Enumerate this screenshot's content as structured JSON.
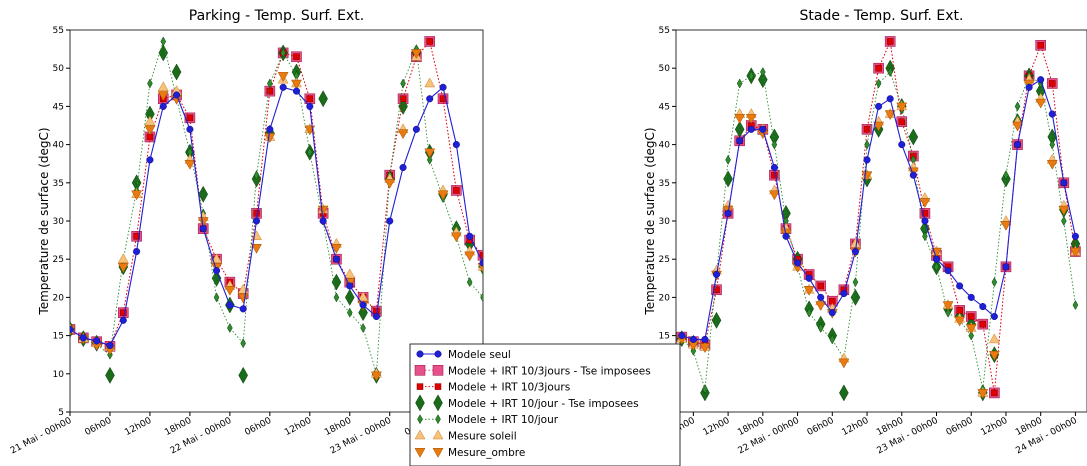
{
  "chart_data": [
    {
      "type": "line",
      "title": "Parking - Temp. Surf. Ext.",
      "y_label": "Temperature de surface (degC)",
      "x": [
        0,
        2,
        4,
        6,
        8,
        10,
        12,
        14,
        16,
        18,
        20,
        22,
        24,
        26,
        28,
        30,
        32,
        34,
        36,
        38,
        40,
        42,
        44,
        46,
        48,
        50,
        52,
        54,
        56,
        58,
        60,
        62
      ],
      "xlim": [
        0,
        62
      ],
      "xticks": [
        {
          "value": 0,
          "label": "21 Mai - 00h00"
        },
        {
          "value": 6,
          "label": "06h00"
        },
        {
          "value": 12,
          "label": "12h00"
        },
        {
          "value": 18,
          "label": "18h00"
        },
        {
          "value": 24,
          "label": "22 Mai - 00h00"
        },
        {
          "value": 30,
          "label": "06h00"
        },
        {
          "value": 36,
          "label": "12h00"
        },
        {
          "value": 42,
          "label": "18h00"
        },
        {
          "value": 48,
          "label": "23 Mai - 00h00"
        },
        {
          "value": 54,
          "label": "06h00"
        },
        {
          "value": 60,
          "label": "12h00"
        }
      ],
      "ylim": [
        5,
        55
      ],
      "yticks": [
        5,
        10,
        15,
        20,
        25,
        30,
        35,
        40,
        45,
        50,
        55
      ],
      "series": [
        {
          "name": "Modele seul",
          "color": "#1f1fd6",
          "line": "solid",
          "marker": "circle",
          "values": [
            15.8,
            14.7,
            14.3,
            13.7,
            17,
            26,
            38,
            45,
            46.5,
            42,
            29,
            23.5,
            19,
            18.5,
            30,
            42,
            47.5,
            47,
            45,
            30,
            25,
            21.5,
            19,
            17.5,
            30,
            37,
            42,
            46,
            47.5,
            40,
            28,
            24.5
          ]
        },
        {
          "name": "Modele + IRT 10/3jours - Tse imposees",
          "color": "#e8508a",
          "line": "dotted",
          "marker": "big-square",
          "values": [
            15.8,
            14.7,
            14.2,
            13.6,
            18,
            28,
            41,
            46,
            46.5,
            43.5,
            29,
            25,
            22,
            20.5,
            31,
            47,
            52,
            51.5,
            46,
            31,
            25,
            22,
            20,
            18.2,
            36,
            46,
            51.5,
            53.5,
            46,
            34,
            27.5,
            25.5
          ]
        },
        {
          "name": "Modele + IRT 10/3jours",
          "color": "#e00000",
          "line": "dotted",
          "marker": "square",
          "values": [
            15.8,
            14.7,
            14.2,
            13.6,
            18,
            28,
            41,
            46,
            46.5,
            43.5,
            29,
            25,
            22,
            20.5,
            31,
            47,
            52,
            51.5,
            46,
            31,
            25,
            22,
            20,
            18.2,
            36,
            46,
            51.5,
            53.5,
            46,
            34,
            27.5,
            25.5
          ]
        },
        {
          "name": "Modele + IRT 10/jour - Tse imposees",
          "color": "#1a6b1a",
          "line": "none",
          "marker": "big-diamond",
          "values": [
            15.8,
            14.6,
            14,
            9.8,
            24,
            35,
            44,
            52,
            49.5,
            39,
            33.5,
            22.5,
            19,
            9.8,
            35.5,
            41.5,
            52,
            49.5,
            39,
            46,
            22,
            20,
            18,
            9.8,
            35.5,
            45,
            52,
            39,
            33.5,
            29,
            27,
            24
          ]
        },
        {
          "name": "Modele + IRT 10/jour",
          "color": "#2e8b2e",
          "line": "dotted",
          "marker": "diamond",
          "values": [
            15.8,
            14.6,
            13.8,
            12.5,
            25,
            34,
            48,
            53.5,
            46,
            39,
            31,
            20,
            16,
            14,
            36,
            48,
            52,
            49,
            39,
            30,
            20,
            18,
            16,
            10,
            36,
            48,
            52.5,
            38,
            33,
            28,
            22,
            20
          ]
        },
        {
          "name": "Mesure  soleil",
          "color": "#f5c27a",
          "line": "none",
          "marker": "triangle-up",
          "values": [
            15.8,
            14.6,
            14,
            13.5,
            25,
            33.5,
            43,
            47.5,
            47,
            38,
            30.5,
            25,
            21.5,
            21,
            28,
            41,
            48.5,
            48,
            42,
            31.5,
            27,
            23,
            20,
            10,
            35.5,
            42,
            51.5,
            48,
            34,
            28.5,
            26,
            24
          ]
        },
        {
          "name": "Mesure_ombre",
          "color": "#e87a10",
          "line": "none",
          "marker": "triangle-down",
          "values": [
            15.8,
            14.6,
            13.8,
            13.2,
            24,
            33.5,
            42,
            46.5,
            46,
            37.5,
            30,
            24,
            21,
            20,
            26.5,
            41,
            49,
            48,
            42,
            31.5,
            26.5,
            22,
            19,
            9.8,
            35,
            41.5,
            52,
            39,
            33.5,
            28,
            25.5,
            24
          ]
        }
      ]
    },
    {
      "type": "line",
      "title": "Stade - Temp. Surf. Ext.",
      "y_label": "Temperature de surface (degC)",
      "x": [
        4,
        6,
        8,
        10,
        12,
        14,
        16,
        18,
        20,
        22,
        24,
        26,
        28,
        30,
        32,
        34,
        36,
        38,
        40,
        42,
        44,
        46,
        48,
        50,
        52,
        54,
        56,
        58,
        60,
        62,
        64,
        66,
        68,
        70,
        72
      ],
      "xlim": [
        3,
        74
      ],
      "xticks": [
        {
          "value": 6,
          "label": "06h00"
        },
        {
          "value": 12,
          "label": "12h00"
        },
        {
          "value": 18,
          "label": "18h00"
        },
        {
          "value": 24,
          "label": "22 Mai - 00h00"
        },
        {
          "value": 30,
          "label": "06h00"
        },
        {
          "value": 36,
          "label": "12h00"
        },
        {
          "value": 42,
          "label": "18h00"
        },
        {
          "value": 48,
          "label": "23 Mai - 00h00"
        },
        {
          "value": 54,
          "label": "06h00"
        },
        {
          "value": 60,
          "label": "12h00"
        },
        {
          "value": 66,
          "label": "18h00"
        },
        {
          "value": 72,
          "label": "24 Mai - 00h00"
        }
      ],
      "ylim": [
        5,
        55
      ],
      "yticks": [
        5,
        10,
        15,
        20,
        25,
        30,
        35,
        40,
        45,
        50,
        55
      ],
      "series": [
        {
          "color": "#1f1fd6",
          "line": "solid",
          "marker": "circle",
          "values": [
            15,
            14.5,
            14.5,
            23,
            31,
            40.5,
            42,
            42,
            37,
            28,
            24.5,
            22.5,
            20,
            18,
            20.5,
            26,
            38,
            45,
            46,
            40,
            36,
            30,
            25,
            23.5,
            21.5,
            20,
            18.8,
            17.5,
            24,
            40,
            47.5,
            48.5,
            44,
            35,
            28
          ]
        },
        {
          "color": "#e8508a",
          "line": "dotted",
          "marker": "big-square",
          "values": [
            14.8,
            14.2,
            13.8,
            21,
            31,
            40.5,
            42.5,
            42,
            36,
            29,
            25,
            23,
            21.5,
            19.5,
            21,
            27,
            42,
            50,
            53.5,
            43,
            38.5,
            31,
            25.5,
            24,
            18.3,
            17.5,
            16.5,
            7.5,
            24,
            40,
            49,
            53,
            48,
            35,
            26
          ]
        },
        {
          "color": "#e00000",
          "line": "dotted",
          "marker": "square",
          "values": [
            14.8,
            14.2,
            13.8,
            21,
            31,
            40.5,
            42.5,
            42,
            36,
            29,
            25,
            23,
            21.5,
            19.5,
            21,
            27,
            42,
            50,
            53.5,
            43,
            38.5,
            31,
            25.5,
            24,
            18.3,
            17.5,
            16.5,
            7.5,
            24,
            40,
            49,
            53,
            48,
            35,
            26
          ]
        },
        {
          "color": "#1a6b1a",
          "line": "none",
          "marker": "big-diamond",
          "values": [
            14.6,
            14,
            7.5,
            17,
            35.5,
            42,
            49,
            48.5,
            41,
            31,
            25,
            18.5,
            16.5,
            15,
            7.5,
            20,
            35.5,
            42,
            50,
            45,
            41,
            29,
            24,
            18.5,
            17.5,
            16.5,
            7.5,
            12.5,
            35.5,
            43,
            49,
            47,
            41,
            31.5,
            27
          ]
        },
        {
          "color": "#2e8b2e",
          "line": "dotted",
          "marker": "diamond",
          "values": [
            14.6,
            13,
            8,
            23,
            38,
            48,
            49,
            49.5,
            40,
            30,
            24,
            18,
            16,
            14.5,
            12,
            22,
            40,
            48,
            49.5,
            45,
            38,
            28,
            24,
            18,
            17,
            15,
            8,
            22,
            36,
            45,
            49,
            48,
            40,
            30,
            19
          ]
        },
        {
          "color": "#f5c27a",
          "line": "none",
          "marker": "triangle-up",
          "values": [
            14.6,
            13.8,
            13.5,
            23.5,
            32,
            44,
            44,
            42,
            34,
            29,
            24,
            21,
            19.5,
            18.5,
            12,
            27,
            36,
            43,
            44,
            45,
            37,
            33,
            26,
            19,
            17.2,
            16,
            7.5,
            14.5,
            30,
            43,
            48.5,
            46,
            38,
            32,
            26
          ]
        },
        {
          "color": "#e87a10",
          "line": "none",
          "marker": "triangle-down",
          "values": [
            14.6,
            13.8,
            13.5,
            23,
            31.5,
            43.5,
            43.5,
            41.5,
            33.5,
            28.5,
            24,
            21,
            19,
            18,
            11.5,
            26,
            36,
            42.5,
            44,
            45,
            36.5,
            32.5,
            26,
            19,
            17,
            16,
            7.5,
            12.5,
            29.5,
            42.5,
            48,
            45.5,
            37.5,
            31.5,
            26
          ]
        }
      ]
    }
  ]
}
